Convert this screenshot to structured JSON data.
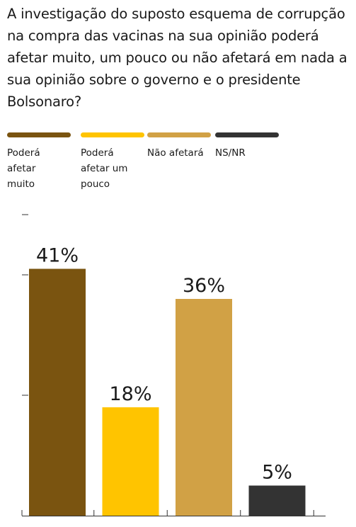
{
  "title": "A investigação do suposto esquema de corrupção na compra das vacinas na sua opinião poderá afetar muito, um pouco ou não afetará em nada a sua opinião sobre o governo e o presidente Bolsonaro?",
  "chart_data": {
    "type": "bar",
    "title": "A investigação do suposto esquema de corrupção na compra das vacinas na sua opinião poderá afetar muito, um pouco ou não afetará em nada a sua opinião sobre o governo e o presidente Bolsonaro?",
    "categories": [
      "Poderá afetar muito",
      "Poderá afetar um pouco",
      "Não afetará",
      "NS/NR"
    ],
    "values": [
      41,
      18,
      36,
      5
    ],
    "data_labels": [
      "41%",
      "18%",
      "36%",
      "5%"
    ],
    "colors": [
      "#7a5410",
      "#ffc400",
      "#d1a145",
      "#333333"
    ],
    "ylim": [
      0,
      50
    ],
    "legend": {
      "placement": "top",
      "items": [
        {
          "label": "Poderá afetar muito",
          "color": "#7a5410"
        },
        {
          "label": "Poderá afetar um pouco",
          "color": "#ffc400"
        },
        {
          "label": "Não afetará",
          "color": "#d1a145"
        },
        {
          "label": "NS/NR",
          "color": "#333333"
        }
      ]
    },
    "grid": false
  }
}
